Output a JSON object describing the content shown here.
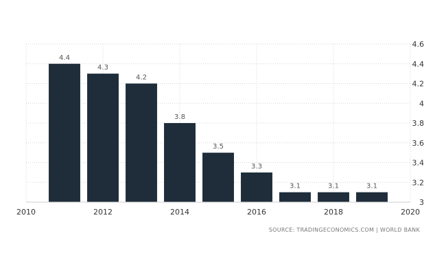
{
  "chart_data": {
    "type": "bar",
    "x": [
      2011,
      2012,
      2013,
      2014,
      2015,
      2016,
      2017,
      2018,
      2019
    ],
    "values": [
      4.4,
      4.3,
      4.2,
      3.8,
      3.5,
      3.3,
      3.1,
      3.1,
      3.1
    ],
    "value_labels": [
      "4.4",
      "4.3",
      "4.2",
      "3.8",
      "3.5",
      "3.3",
      "3.1",
      "3.1",
      "3.1"
    ],
    "xlim": [
      2010,
      2020
    ],
    "ylim": [
      3,
      4.6
    ],
    "x_ticks": [
      "2010",
      "2012",
      "2014",
      "2016",
      "2018",
      "2020"
    ],
    "y_ticks": [
      "3",
      "3.2",
      "3.4",
      "3.6",
      "3.8",
      "4",
      "4.2",
      "4.4",
      "4.6"
    ],
    "y_axis_side": "right",
    "grid": true,
    "bar_color": "#1f2d3a",
    "title": "",
    "xlabel": "",
    "ylabel": ""
  },
  "source": "SOURCE: TRADINGECONOMICS.COM  |  WORLD BANK"
}
